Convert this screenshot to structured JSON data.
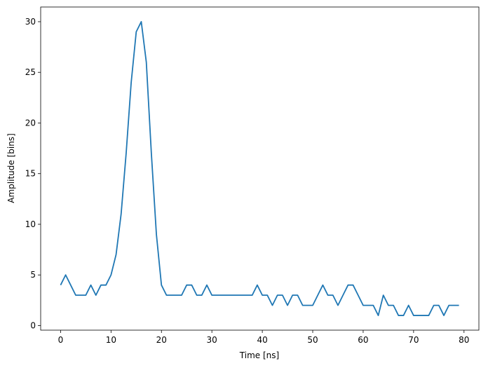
{
  "chart_data": {
    "type": "line",
    "x_label": "Time [ns]",
    "y_label": "Amplitude [bins]",
    "x": [
      0,
      1,
      2,
      3,
      4,
      5,
      6,
      7,
      8,
      9,
      10,
      11,
      12,
      13,
      14,
      15,
      16,
      17,
      18,
      19,
      20,
      21,
      22,
      23,
      24,
      25,
      26,
      27,
      28,
      29,
      30,
      31,
      32,
      33,
      34,
      35,
      36,
      37,
      38,
      39,
      40,
      41,
      42,
      43,
      44,
      45,
      46,
      47,
      48,
      49,
      50,
      51,
      52,
      53,
      54,
      55,
      56,
      57,
      58,
      59,
      60,
      61,
      62,
      63,
      64,
      65,
      66,
      67,
      68,
      69,
      70,
      71,
      72,
      73,
      74,
      75,
      76,
      77,
      78,
      79
    ],
    "values": [
      4,
      5,
      4,
      3,
      3,
      3,
      4,
      3,
      4,
      4,
      5,
      7,
      11,
      17,
      24,
      29,
      30,
      26,
      17,
      9,
      4,
      3,
      3,
      3,
      3,
      4,
      4,
      3,
      3,
      4,
      3,
      3,
      3,
      3,
      3,
      3,
      3,
      3,
      3,
      4,
      3,
      3,
      2,
      3,
      3,
      2,
      3,
      3,
      2,
      2,
      2,
      3,
      4,
      3,
      3,
      2,
      3,
      4,
      4,
      3,
      2,
      2,
      2,
      1,
      3,
      2,
      2,
      1,
      1,
      2,
      1,
      1,
      1,
      1,
      2,
      2,
      1,
      2,
      2,
      2
    ],
    "color": "#1f77b4",
    "xlim": [
      -3.95,
      82.95
    ],
    "xticks": [
      0,
      10,
      20,
      30,
      40,
      50,
      60,
      70,
      80
    ],
    "ylim": [
      -0.45,
      31.45
    ],
    "yticks": [
      0,
      5,
      10,
      15,
      20,
      25,
      30
    ]
  }
}
